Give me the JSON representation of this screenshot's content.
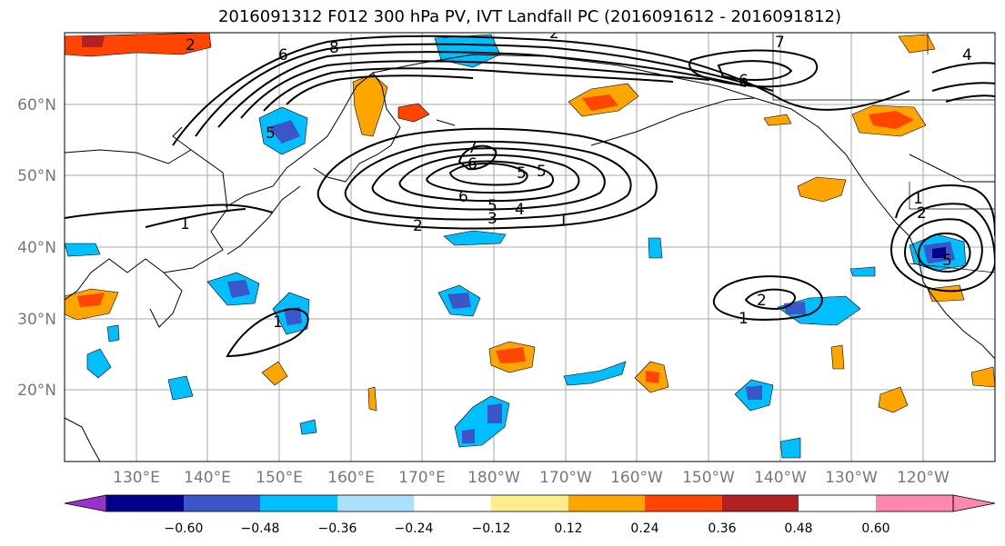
{
  "title": "2016091312 F012 300 hPa PV, IVT Landfall PC (2016091612 - 2016091812)",
  "axes": {
    "lat_ticks": [
      "60°N",
      "50°N",
      "40°N",
      "30°N",
      "20°N"
    ],
    "lon_ticks": [
      "130°E",
      "140°E",
      "150°E",
      "160°E",
      "170°E",
      "180°W",
      "170°W",
      "160°W",
      "150°W",
      "140°W",
      "130°W",
      "120°W"
    ]
  },
  "colorbar": {
    "colors": [
      "#9932CC",
      "#00008B",
      "#3A56C8",
      "#00BFFF",
      "#ADDFFF",
      "#FFFFFF",
      "#FFEC8B",
      "#FFA500",
      "#FF4500",
      "#B22222",
      "#FF88B0"
    ],
    "tick_labels": [
      "−0.60",
      "−0.48",
      "−0.36",
      "−0.24",
      "−0.12",
      "0.12",
      "0.24",
      "0.36",
      "0.48",
      "0.60"
    ]
  },
  "contour_labels": [
    {
      "text": "8"
    },
    {
      "text": "2"
    },
    {
      "text": "6"
    },
    {
      "text": "5"
    },
    {
      "text": "7"
    },
    {
      "text": "6"
    },
    {
      "text": "5"
    },
    {
      "text": "6"
    },
    {
      "text": "5"
    },
    {
      "text": "4"
    },
    {
      "text": "3"
    },
    {
      "text": "2"
    },
    {
      "text": "1"
    },
    {
      "text": "1"
    },
    {
      "text": "1"
    },
    {
      "text": "2"
    },
    {
      "text": "1"
    },
    {
      "text": "7"
    },
    {
      "text": "6"
    },
    {
      "text": "4"
    },
    {
      "text": "2"
    },
    {
      "text": "5"
    },
    {
      "text": "1"
    },
    {
      "text": "2"
    },
    {
      "text": "5"
    }
  ]
}
